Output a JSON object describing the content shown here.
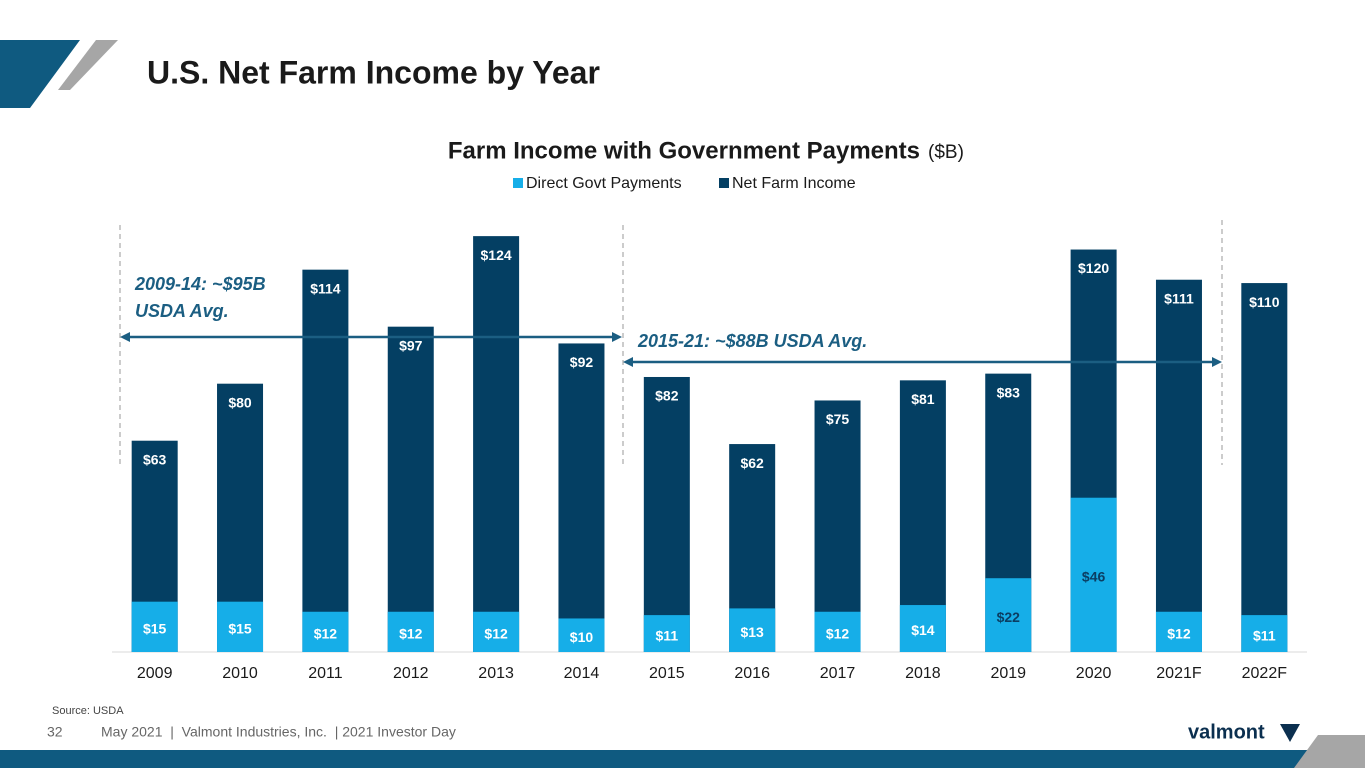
{
  "header": {
    "title": "U.S. Net Farm Income by Year"
  },
  "chart_data": {
    "type": "bar",
    "title": "Farm Income with Government Payments",
    "title_unit": "($B)",
    "categories": [
      "2009",
      "2010",
      "2011",
      "2012",
      "2013",
      "2014",
      "2015",
      "2016",
      "2017",
      "2018",
      "2019",
      "2020",
      "2021F",
      "2022F"
    ],
    "series": [
      {
        "name": "Direct Govt Payments",
        "color": "#16aee8",
        "values": [
          15,
          15,
          12,
          12,
          12,
          10,
          11,
          13,
          12,
          14,
          22,
          46,
          12,
          11
        ],
        "value_labels": [
          "$15",
          "$15",
          "$12",
          "$12",
          "$12",
          "$10",
          "$11",
          "$13",
          "$12",
          "$14",
          "$22",
          "$46",
          "$12",
          "$11"
        ]
      },
      {
        "name": "Net Farm Income",
        "color": "#043f63",
        "values": [
          63,
          80,
          114,
          97,
          124,
          92,
          82,
          62,
          75,
          81,
          83,
          120,
          111,
          110
        ],
        "value_labels": [
          "$63",
          "$80",
          "$114",
          "$97",
          "$124",
          "$92",
          "$82",
          "$62",
          "$75",
          "$81",
          "$83",
          "$120",
          "$111",
          "$110"
        ]
      }
    ],
    "ylim": [
      0,
      130
    ],
    "annotations": [
      [
        "2009-14: ~$95B",
        "USDA Avg."
      ],
      [
        "2015-21: ~$88B USDA Avg."
      ]
    ],
    "source": "Source: USDA"
  },
  "footer": {
    "page": "32",
    "text": "May 2021  |  Valmont Industries, Inc.  | 2021 Investor Day",
    "logo": "valmont"
  }
}
